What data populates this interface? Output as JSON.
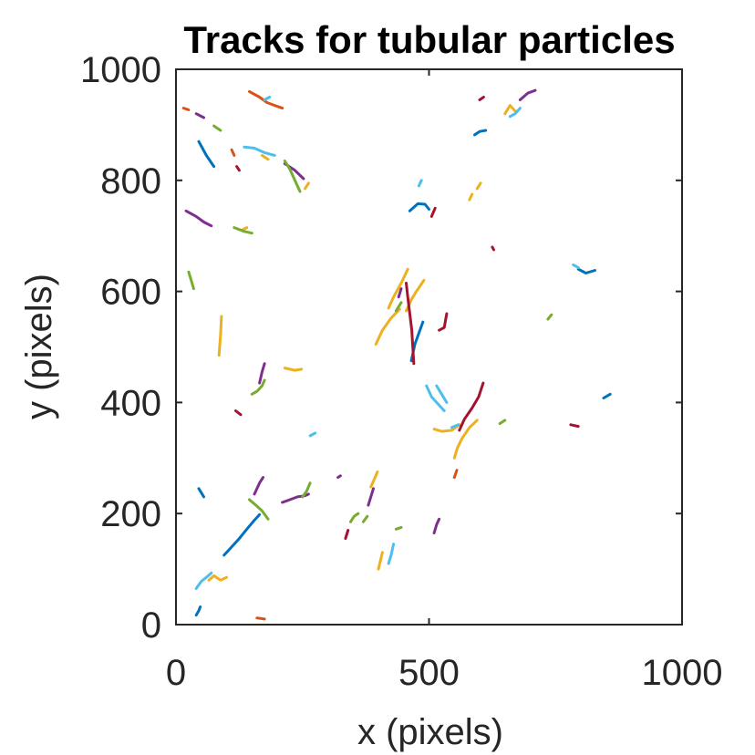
{
  "chart_data": {
    "type": "line",
    "title": "Tracks for tubular particles",
    "xlabel": "x (pixels)",
    "ylabel": "y (pixels)",
    "xlim": [
      0,
      1000
    ],
    "ylim": [
      0,
      1000
    ],
    "xticks": [
      0,
      500,
      1000
    ],
    "yticks": [
      0,
      200,
      400,
      600,
      800,
      1000
    ],
    "xtick_labels": [
      "0",
      "500",
      "1000"
    ],
    "ytick_labels": [
      "0",
      "200",
      "400",
      "600",
      "800",
      "1000"
    ],
    "grid": false,
    "legend": "none",
    "palette": [
      "#0072BD",
      "#D95319",
      "#EDB120",
      "#7E2F8E",
      "#77AC30",
      "#4DBEEE",
      "#A2142F"
    ],
    "series": [
      {
        "color": "#0072BD",
        "points": [
          [
            40,
            17
          ],
          [
            45,
            25
          ],
          [
            48,
            32
          ]
        ]
      },
      {
        "color": "#0072BD",
        "points": [
          [
            95,
            125
          ],
          [
            110,
            140
          ],
          [
            125,
            155
          ],
          [
            140,
            172
          ],
          [
            155,
            188
          ],
          [
            165,
            198
          ]
        ]
      },
      {
        "color": "#0072BD",
        "points": [
          [
            45,
            245
          ],
          [
            55,
            230
          ]
        ]
      },
      {
        "color": "#0072BD",
        "points": [
          [
            45,
            870
          ],
          [
            60,
            845
          ],
          [
            75,
            825
          ]
        ]
      },
      {
        "color": "#0072BD",
        "points": [
          [
            465,
            475
          ],
          [
            472,
            505
          ],
          [
            480,
            525
          ],
          [
            488,
            545
          ]
        ]
      },
      {
        "color": "#0072BD",
        "points": [
          [
            462,
            745
          ],
          [
            478,
            758
          ],
          [
            492,
            757
          ],
          [
            500,
            748
          ]
        ]
      },
      {
        "color": "#0072BD",
        "points": [
          [
            590,
            882
          ],
          [
            600,
            888
          ],
          [
            612,
            890
          ]
        ]
      },
      {
        "color": "#0072BD",
        "points": [
          [
            795,
            640
          ],
          [
            810,
            633
          ],
          [
            828,
            638
          ]
        ]
      },
      {
        "color": "#0072BD",
        "points": [
          [
            845,
            408
          ],
          [
            858,
            415
          ]
        ]
      },
      {
        "color": "#D95319",
        "points": [
          [
            145,
            960
          ],
          [
            165,
            950
          ],
          [
            180,
            940
          ],
          [
            195,
            935
          ],
          [
            210,
            930
          ]
        ]
      },
      {
        "color": "#D95319",
        "points": [
          [
            110,
            855
          ],
          [
            115,
            845
          ]
        ]
      },
      {
        "color": "#D95319",
        "points": [
          [
            15,
            930
          ],
          [
            25,
            927
          ]
        ]
      },
      {
        "color": "#D95319",
        "points": [
          [
            160,
            12
          ],
          [
            175,
            10
          ]
        ]
      },
      {
        "color": "#D95319",
        "points": [
          [
            550,
            265
          ],
          [
            555,
            278
          ]
        ]
      },
      {
        "color": "#EDB120",
        "points": [
          [
            85,
            485
          ],
          [
            88,
            520
          ],
          [
            90,
            555
          ]
        ]
      },
      {
        "color": "#EDB120",
        "points": [
          [
            65,
            80
          ],
          [
            75,
            88
          ],
          [
            88,
            80
          ],
          [
            100,
            85
          ]
        ]
      },
      {
        "color": "#EDB120",
        "points": [
          [
            395,
            505
          ],
          [
            408,
            530
          ],
          [
            425,
            552
          ],
          [
            442,
            568
          ]
        ]
      },
      {
        "color": "#EDB120",
        "points": [
          [
            420,
            570
          ],
          [
            430,
            590
          ],
          [
            445,
            615
          ],
          [
            458,
            640
          ]
        ]
      },
      {
        "color": "#EDB120",
        "points": [
          [
            455,
            565
          ],
          [
            465,
            585
          ],
          [
            475,
            600
          ],
          [
            490,
            620
          ]
        ]
      },
      {
        "color": "#EDB120",
        "points": [
          [
            400,
            100
          ],
          [
            404,
            115
          ],
          [
            408,
            130
          ]
        ]
      },
      {
        "color": "#EDB120",
        "points": [
          [
            385,
            248
          ],
          [
            392,
            262
          ],
          [
            398,
            275
          ]
        ]
      },
      {
        "color": "#EDB120",
        "points": [
          [
            510,
            352
          ],
          [
            525,
            348
          ],
          [
            545,
            350
          ],
          [
            560,
            360
          ]
        ]
      },
      {
        "color": "#EDB120",
        "points": [
          [
            550,
            300
          ],
          [
            556,
            318
          ],
          [
            565,
            335
          ],
          [
            580,
            355
          ],
          [
            595,
            368
          ]
        ]
      },
      {
        "color": "#EDB120",
        "points": [
          [
            215,
            462
          ],
          [
            235,
            458
          ],
          [
            248,
            460
          ]
        ]
      },
      {
        "color": "#EDB120",
        "points": [
          [
            650,
            920
          ],
          [
            660,
            935
          ],
          [
            670,
            925
          ]
        ]
      },
      {
        "color": "#EDB120",
        "points": [
          [
            255,
            785
          ],
          [
            262,
            795
          ]
        ]
      },
      {
        "color": "#EDB120",
        "points": [
          [
            580,
            765
          ],
          [
            585,
            775
          ]
        ]
      },
      {
        "color": "#EDB120",
        "points": [
          [
            595,
            785
          ],
          [
            602,
            795
          ]
        ]
      },
      {
        "color": "#EDB120",
        "points": [
          [
            170,
            845
          ],
          [
            182,
            838
          ]
        ]
      },
      {
        "color": "#EDB120",
        "points": [
          [
            130,
            710
          ],
          [
            140,
            715
          ]
        ]
      },
      {
        "color": "#7E2F8E",
        "points": [
          [
            20,
            745
          ],
          [
            40,
            735
          ],
          [
            55,
            725
          ],
          [
            70,
            718
          ]
        ]
      },
      {
        "color": "#7E2F8E",
        "points": [
          [
            155,
            235
          ],
          [
            165,
            255
          ],
          [
            172,
            265
          ]
        ]
      },
      {
        "color": "#7E2F8E",
        "points": [
          [
            165,
            435
          ],
          [
            170,
            455
          ],
          [
            175,
            470
          ]
        ]
      },
      {
        "color": "#7E2F8E",
        "points": [
          [
            210,
            220
          ],
          [
            225,
            225
          ],
          [
            240,
            230
          ],
          [
            255,
            232
          ],
          [
            262,
            235
          ]
        ]
      },
      {
        "color": "#7E2F8E",
        "points": [
          [
            680,
            945
          ],
          [
            695,
            957
          ],
          [
            710,
            962
          ]
        ]
      },
      {
        "color": "#7E2F8E",
        "points": [
          [
            215,
            830
          ],
          [
            235,
            818
          ],
          [
            252,
            803
          ]
        ]
      },
      {
        "color": "#7E2F8E",
        "points": [
          [
            380,
            215
          ],
          [
            385,
            230
          ],
          [
            390,
            245
          ]
        ]
      },
      {
        "color": "#7E2F8E",
        "points": [
          [
            510,
            165
          ],
          [
            515,
            180
          ],
          [
            520,
            190
          ]
        ]
      },
      {
        "color": "#7E2F8E",
        "points": [
          [
            440,
            590
          ],
          [
            445,
            605
          ]
        ]
      },
      {
        "color": "#7E2F8E",
        "points": [
          [
            40,
            920
          ],
          [
            55,
            913
          ]
        ]
      },
      {
        "color": "#7E2F8E",
        "points": [
          [
            320,
            265
          ],
          [
            325,
            268
          ]
        ]
      },
      {
        "color": "#77AC30",
        "points": [
          [
            115,
            715
          ],
          [
            135,
            708
          ],
          [
            150,
            705
          ]
        ]
      },
      {
        "color": "#77AC30",
        "points": [
          [
            245,
            780
          ],
          [
            235,
            800
          ],
          [
            225,
            820
          ],
          [
            215,
            835
          ]
        ]
      },
      {
        "color": "#77AC30",
        "points": [
          [
            150,
            415
          ],
          [
            160,
            420
          ],
          [
            170,
            430
          ],
          [
            175,
            440
          ]
        ]
      },
      {
        "color": "#77AC30",
        "points": [
          [
            145,
            225
          ],
          [
            158,
            215
          ],
          [
            170,
            205
          ],
          [
            182,
            190
          ]
        ]
      },
      {
        "color": "#77AC30",
        "points": [
          [
            250,
            230
          ],
          [
            258,
            240
          ],
          [
            265,
            255
          ]
        ]
      },
      {
        "color": "#77AC30",
        "points": [
          [
            345,
            185
          ],
          [
            352,
            195
          ],
          [
            360,
            200
          ]
        ]
      },
      {
        "color": "#77AC30",
        "points": [
          [
            370,
            185
          ],
          [
            378,
            195
          ]
        ]
      },
      {
        "color": "#77AC30",
        "points": [
          [
            25,
            635
          ],
          [
            30,
            620
          ],
          [
            35,
            605
          ]
        ]
      },
      {
        "color": "#77AC30",
        "points": [
          [
            75,
            898
          ],
          [
            88,
            890
          ]
        ]
      },
      {
        "color": "#77AC30",
        "points": [
          [
            640,
            362
          ],
          [
            650,
            368
          ]
        ]
      },
      {
        "color": "#77AC30",
        "points": [
          [
            435,
            565
          ],
          [
            445,
            580
          ]
        ]
      },
      {
        "color": "#77AC30",
        "points": [
          [
            435,
            172
          ],
          [
            445,
            175
          ]
        ]
      },
      {
        "color": "#77AC30",
        "points": [
          [
            735,
            550
          ],
          [
            742,
            558
          ]
        ]
      },
      {
        "color": "#4DBEEE",
        "points": [
          [
            135,
            860
          ],
          [
            155,
            858
          ],
          [
            175,
            850
          ],
          [
            195,
            845
          ]
        ]
      },
      {
        "color": "#4DBEEE",
        "points": [
          [
            40,
            65
          ],
          [
            50,
            78
          ],
          [
            60,
            85
          ],
          [
            70,
            93
          ]
        ]
      },
      {
        "color": "#4DBEEE",
        "points": [
          [
            420,
            110
          ],
          [
            425,
            125
          ],
          [
            430,
            145
          ]
        ]
      },
      {
        "color": "#4DBEEE",
        "points": [
          [
            495,
            430
          ],
          [
            505,
            410
          ],
          [
            520,
            395
          ],
          [
            530,
            385
          ]
        ]
      },
      {
        "color": "#4DBEEE",
        "points": [
          [
            515,
            430
          ],
          [
            525,
            415
          ],
          [
            535,
            400
          ]
        ]
      },
      {
        "color": "#4DBEEE",
        "points": [
          [
            480,
            790
          ],
          [
            485,
            800
          ]
        ]
      },
      {
        "color": "#4DBEEE",
        "points": [
          [
            660,
            915
          ],
          [
            670,
            920
          ],
          [
            680,
            930
          ]
        ]
      },
      {
        "color": "#4DBEEE",
        "points": [
          [
            175,
            945
          ],
          [
            185,
            950
          ]
        ]
      },
      {
        "color": "#4DBEEE",
        "points": [
          [
            265,
            340
          ],
          [
            275,
            345
          ]
        ]
      },
      {
        "color": "#4DBEEE",
        "points": [
          [
            545,
            355
          ],
          [
            558,
            360
          ]
        ]
      },
      {
        "color": "#4DBEEE",
        "points": [
          [
            785,
            648
          ],
          [
            795,
            643
          ]
        ]
      },
      {
        "color": "#A2142F",
        "points": [
          [
            455,
            615
          ],
          [
            458,
            590
          ],
          [
            462,
            560
          ],
          [
            466,
            530
          ],
          [
            468,
            500
          ],
          [
            470,
            470
          ]
        ]
      },
      {
        "color": "#A2142F",
        "points": [
          [
            560,
            350
          ],
          [
            570,
            370
          ],
          [
            585,
            390
          ],
          [
            598,
            410
          ],
          [
            607,
            435
          ]
        ]
      },
      {
        "color": "#A2142F",
        "points": [
          [
            520,
            530
          ],
          [
            530,
            535
          ],
          [
            535,
            560
          ]
        ]
      },
      {
        "color": "#A2142F",
        "points": [
          [
            335,
            155
          ],
          [
            340,
            170
          ]
        ]
      },
      {
        "color": "#A2142F",
        "points": [
          [
            505,
            735
          ],
          [
            512,
            750
          ]
        ]
      },
      {
        "color": "#A2142F",
        "points": [
          [
            600,
            945
          ],
          [
            608,
            950
          ]
        ]
      },
      {
        "color": "#A2142F",
        "points": [
          [
            120,
            825
          ],
          [
            125,
            818
          ]
        ]
      },
      {
        "color": "#A2142F",
        "points": [
          [
            780,
            360
          ],
          [
            795,
            357
          ]
        ]
      },
      {
        "color": "#A2142F",
        "points": [
          [
            118,
            385
          ],
          [
            128,
            378
          ]
        ]
      },
      {
        "color": "#A2142F",
        "points": [
          [
            625,
            680
          ],
          [
            628,
            675
          ]
        ]
      }
    ]
  }
}
